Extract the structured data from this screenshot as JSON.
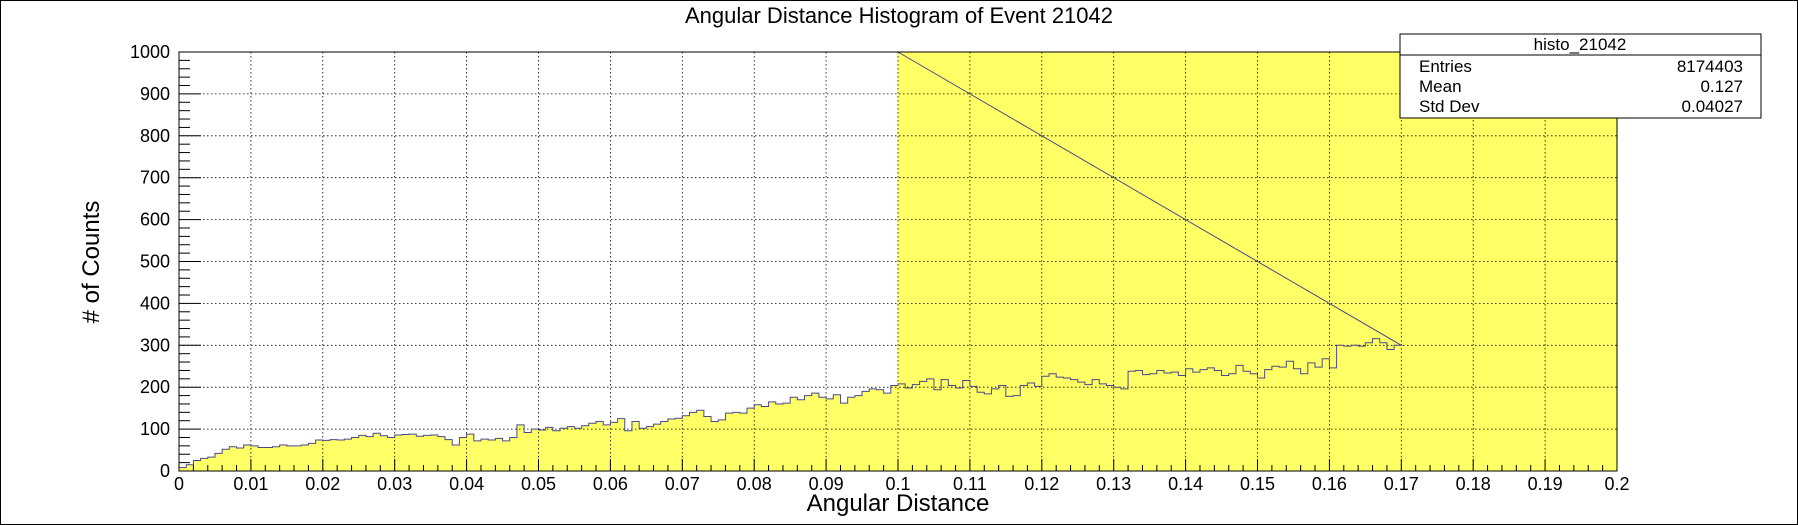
{
  "chart_data": {
    "type": "bar",
    "title": "Angular Distance Histogram of Event 21042",
    "xlabel": "Angular Distance",
    "ylabel": "# of Counts",
    "xlim": [
      0,
      0.2
    ],
    "ylim": [
      0,
      1000
    ],
    "x_ticks": [
      "0",
      "0.01",
      "0.02",
      "0.03",
      "0.04",
      "0.05",
      "0.06",
      "0.07",
      "0.08",
      "0.09",
      "0.1",
      "0.11",
      "0.12",
      "0.13",
      "0.14",
      "0.15",
      "0.16",
      "0.17",
      "0.18",
      "0.19",
      "0.2"
    ],
    "y_ticks": [
      "0",
      "100",
      "200",
      "300",
      "400",
      "500",
      "600",
      "700",
      "800",
      "900",
      "1000"
    ],
    "grid": true,
    "bin_width": 0.001,
    "bin_start": 0,
    "values": [
      8,
      15,
      25,
      30,
      33,
      42,
      52,
      58,
      55,
      62,
      60,
      56,
      56,
      58,
      62,
      60,
      60,
      62,
      66,
      74,
      73,
      75,
      74,
      76,
      80,
      85,
      82,
      90,
      84,
      80,
      86,
      87,
      88,
      83,
      85,
      86,
      82,
      75,
      62,
      80,
      88,
      72,
      76,
      74,
      78,
      72,
      80,
      110,
      92,
      100,
      98,
      104,
      96,
      102,
      106,
      102,
      108,
      114,
      118,
      110,
      116,
      125,
      96,
      118,
      102,
      106,
      112,
      118,
      124,
      126,
      132,
      140,
      145,
      130,
      118,
      122,
      138,
      140,
      138,
      150,
      158,
      154,
      165,
      160,
      162,
      176,
      170,
      180,
      186,
      176,
      172,
      182,
      162,
      176,
      180,
      190,
      196,
      194,
      186,
      204,
      208,
      198,
      206,
      214,
      220,
      194,
      218,
      204,
      198,
      216,
      202,
      188,
      184,
      196,
      204,
      178,
      180,
      204,
      210,
      202,
      226,
      232,
      224,
      222,
      218,
      212,
      206,
      218,
      208,
      204,
      200,
      196,
      238,
      240,
      230,
      232,
      240,
      234,
      236,
      228,
      244,
      236,
      242,
      246,
      240,
      228,
      232,
      252,
      238,
      232,
      222,
      242,
      250,
      248,
      262,
      244,
      232,
      258,
      248,
      268,
      246,
      300,
      298,
      300,
      298,
      306,
      316,
      306,
      290,
      300
    ],
    "overflow_region": {
      "x_start": 0.1,
      "x_end": 0.2,
      "note": "filled to top of axis"
    },
    "fill_color": "#ffff66",
    "line_color": "#4a4a8a",
    "stats_box": {
      "name": "histo_21042",
      "rows": [
        {
          "label": "Entries",
          "value": "8174403"
        },
        {
          "label": "Mean",
          "value": "0.127"
        },
        {
          "label": "Std Dev",
          "value": "0.04027"
        }
      ]
    }
  }
}
